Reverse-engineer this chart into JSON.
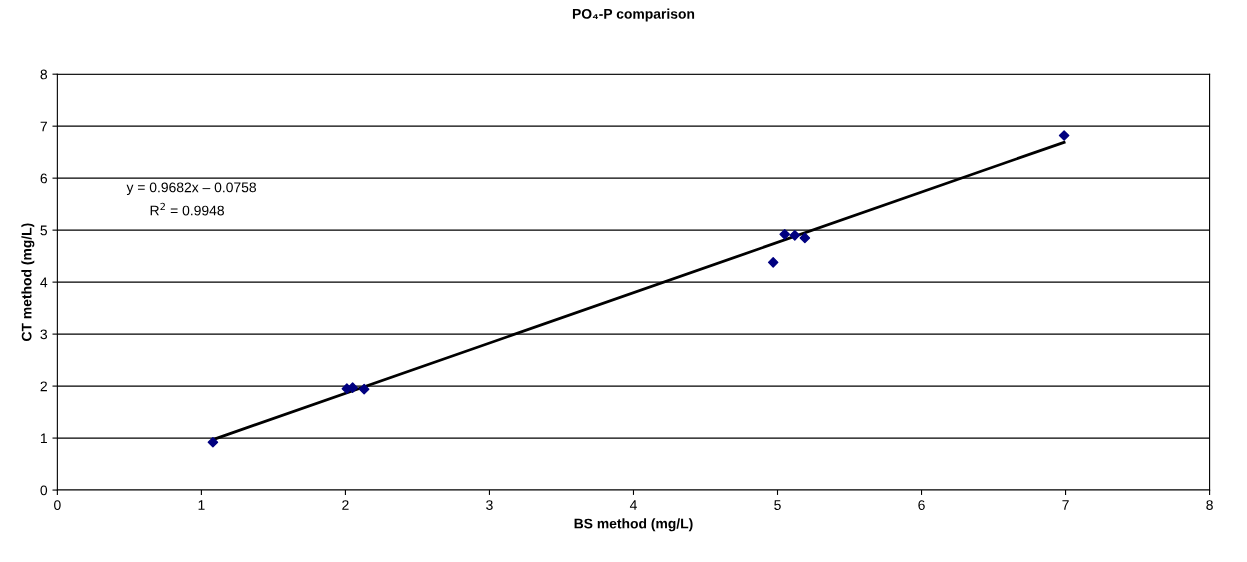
{
  "chart_data": {
    "type": "scatter",
    "title": "PO₄-P comparison",
    "xlabel": "BS method (mg/L)",
    "ylabel": "CT method (mg/L)",
    "series": [
      {
        "color": "#000080",
        "marker": "diamond",
        "x": [
          1.08,
          2.01,
          2.05,
          2.13,
          4.97,
          5.05,
          5.12,
          5.19,
          6.99
        ],
        "values": [
          0.92,
          1.95,
          1.97,
          1.94,
          4.38,
          4.92,
          4.9,
          4.85,
          6.82
        ]
      },
      {
        "type": "line",
        "color": "#000000",
        "marker": "none",
        "x": [
          1.08,
          6.99
        ],
        "values": [
          0.97,
          6.69
        ]
      }
    ],
    "annotations": [
      "y = 0.9682x – 0.0758",
      "R$^{2}$ = 0.9948"
    ],
    "xlim": [
      0,
      8
    ],
    "xticks": [
      0,
      1,
      2,
      3,
      4,
      5,
      6,
      7,
      8
    ],
    "ylim": [
      0,
      8
    ],
    "yticks": [
      0,
      1,
      2,
      3,
      4,
      5,
      6,
      7,
      8
    ],
    "grid": "y",
    "legend": false
  }
}
